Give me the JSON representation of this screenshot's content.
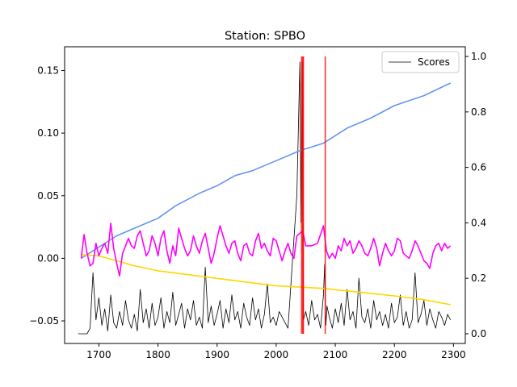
{
  "chart_data": {
    "type": "line",
    "title": "Station: SPBO",
    "xlabel": "",
    "ylabel": "",
    "y2label": "",
    "xlim": [
      1642,
      2320
    ],
    "ylim": [
      -0.068,
      0.169
    ],
    "y2lim": [
      -0.035,
      1.035
    ],
    "x_ticks": [
      1700,
      1800,
      1900,
      2000,
      2100,
      2200,
      2300
    ],
    "y_ticks": [
      -0.05,
      0.0,
      0.05,
      0.1,
      0.15
    ],
    "y_tick_labels": [
      "−0.05",
      "0.00",
      "0.05",
      "0.10",
      "0.15"
    ],
    "y2_ticks": [
      0.0,
      0.2,
      0.4,
      0.6,
      0.8,
      1.0
    ],
    "y2_tick_labels": [
      "0.0",
      "0.2",
      "0.4",
      "0.6",
      "0.8",
      "1.0"
    ],
    "legend": {
      "position": "upper right",
      "entries": [
        "Scores"
      ]
    },
    "grid": false,
    "series": [
      {
        "axis": "left",
        "color": "#6495ED",
        "x": [
          1670,
          1690,
          1710,
          1730,
          1760,
          1800,
          1830,
          1870,
          1900,
          1930,
          1960,
          2000,
          2040,
          2080,
          2120,
          2160,
          2200,
          2250,
          2295
        ],
        "y": [
          0.0,
          0.006,
          0.012,
          0.018,
          0.024,
          0.032,
          0.042,
          0.052,
          0.058,
          0.066,
          0.07,
          0.078,
          0.086,
          0.092,
          0.104,
          0.112,
          0.122,
          0.13,
          0.14
        ]
      },
      {
        "axis": "left",
        "color": "#FFD700",
        "x": [
          1670,
          1700,
          1730,
          1760,
          1800,
          1850,
          1900,
          1950,
          2000,
          2040,
          2080,
          2120,
          2160,
          2200,
          2250,
          2295
        ],
        "y": [
          0.003,
          0.002,
          -0.002,
          -0.006,
          -0.01,
          -0.013,
          -0.016,
          -0.019,
          -0.022,
          -0.023,
          -0.024,
          -0.026,
          -0.028,
          -0.03,
          -0.033,
          -0.037
        ]
      },
      {
        "axis": "left",
        "color": "#FF00FF",
        "x": [
          1670,
          1675,
          1680,
          1685,
          1690,
          1695,
          1700,
          1705,
          1710,
          1715,
          1720,
          1725,
          1730,
          1735,
          1740,
          1745,
          1750,
          1755,
          1760,
          1765,
          1770,
          1775,
          1780,
          1785,
          1790,
          1795,
          1800,
          1805,
          1810,
          1815,
          1820,
          1825,
          1830,
          1835,
          1840,
          1845,
          1850,
          1855,
          1860,
          1865,
          1870,
          1875,
          1880,
          1885,
          1890,
          1895,
          1900,
          1905,
          1910,
          1915,
          1920,
          1925,
          1930,
          1935,
          1940,
          1945,
          1950,
          1955,
          1960,
          1965,
          1970,
          1975,
          1980,
          1985,
          1990,
          1995,
          2000,
          2005,
          2010,
          2015,
          2020,
          2025,
          2030,
          2035,
          2040,
          2045,
          2050,
          2060,
          2070,
          2080,
          2085,
          2090,
          2095,
          2100,
          2105,
          2110,
          2115,
          2120,
          2125,
          2130,
          2135,
          2140,
          2145,
          2150,
          2155,
          2160,
          2165,
          2170,
          2175,
          2180,
          2185,
          2190,
          2195,
          2200,
          2205,
          2210,
          2215,
          2220,
          2225,
          2230,
          2235,
          2240,
          2245,
          2250,
          2255,
          2260,
          2265,
          2270,
          2275,
          2280,
          2285,
          2290,
          2295
        ],
        "y": [
          0.0,
          0.019,
          0.004,
          -0.006,
          -0.004,
          0.012,
          0.002,
          0.008,
          0.012,
          0.004,
          0.028,
          0.008,
          -0.004,
          -0.014,
          0.004,
          0.01,
          0.016,
          0.01,
          0.008,
          0.018,
          0.022,
          0.012,
          0.002,
          0.006,
          0.018,
          0.012,
          0.002,
          0.016,
          0.022,
          0.006,
          -0.004,
          0.01,
          0.002,
          0.024,
          0.016,
          0.008,
          0.002,
          0.006,
          0.018,
          0.01,
          0.004,
          0.014,
          0.02,
          0.008,
          -0.004,
          0.004,
          0.016,
          0.026,
          0.018,
          0.01,
          0.004,
          0.012,
          0.014,
          0.004,
          -0.002,
          0.01,
          0.012,
          0.004,
          0.002,
          0.014,
          0.02,
          0.008,
          0.012,
          0.006,
          0.002,
          0.016,
          0.014,
          0.006,
          -0.002,
          0.006,
          0.012,
          0.004,
          0.0,
          0.018,
          0.02,
          0.022,
          0.01,
          0.01,
          0.012,
          0.026,
          0.006,
          0.0,
          0.004,
          0.0,
          0.01,
          0.006,
          0.016,
          0.01,
          0.014,
          0.004,
          0.008,
          0.014,
          0.01,
          0.004,
          0.002,
          0.008,
          0.016,
          0.008,
          -0.006,
          0.004,
          0.012,
          0.006,
          0.002,
          0.006,
          0.016,
          0.014,
          0.004,
          0.002,
          0.0,
          0.006,
          0.014,
          0.01,
          0.004,
          -0.002,
          -0.004,
          -0.008,
          0.004,
          0.01,
          0.012,
          0.006,
          0.012,
          0.008,
          0.01
        ]
      },
      {
        "axis": "right",
        "name": "Scores",
        "color": "#000000",
        "x": [
          1665,
          1680,
          1685,
          1690,
          1695,
          1700,
          1705,
          1710,
          1715,
          1720,
          1725,
          1730,
          1735,
          1740,
          1745,
          1750,
          1755,
          1760,
          1765,
          1770,
          1775,
          1780,
          1785,
          1790,
          1795,
          1800,
          1805,
          1810,
          1815,
          1820,
          1825,
          1830,
          1835,
          1840,
          1845,
          1850,
          1855,
          1860,
          1865,
          1870,
          1875,
          1880,
          1885,
          1890,
          1895,
          1900,
          1905,
          1910,
          1915,
          1920,
          1925,
          1930,
          1935,
          1940,
          1945,
          1950,
          1955,
          1960,
          1965,
          1970,
          1975,
          1980,
          1985,
          1990,
          1995,
          2000,
          2005,
          2020,
          2035,
          2040,
          2042,
          2044,
          2046,
          2050,
          2055,
          2060,
          2065,
          2070,
          2075,
          2080,
          2082,
          2084,
          2086,
          2090,
          2095,
          2100,
          2105,
          2110,
          2115,
          2120,
          2125,
          2130,
          2135,
          2140,
          2145,
          2150,
          2155,
          2160,
          2165,
          2170,
          2175,
          2180,
          2185,
          2190,
          2195,
          2200,
          2205,
          2210,
          2215,
          2220,
          2225,
          2230,
          2235,
          2240,
          2245,
          2250,
          2255,
          2260,
          2265,
          2270,
          2275,
          2280,
          2285,
          2290,
          2295
        ],
        "y": [
          0.0,
          0.0,
          0.02,
          0.22,
          0.05,
          0.13,
          0.03,
          0.09,
          0.01,
          0.14,
          0.04,
          0.02,
          0.08,
          0.03,
          0.12,
          0.05,
          0.02,
          0.07,
          0.01,
          0.16,
          0.04,
          0.09,
          0.02,
          0.11,
          0.03,
          0.06,
          0.13,
          0.02,
          0.08,
          0.04,
          0.15,
          0.03,
          0.07,
          0.11,
          0.02,
          0.09,
          0.05,
          0.12,
          0.03,
          0.06,
          0.02,
          0.24,
          0.04,
          0.1,
          0.03,
          0.07,
          0.12,
          0.02,
          0.09,
          0.04,
          0.14,
          0.05,
          0.08,
          0.02,
          0.11,
          0.06,
          0.03,
          0.13,
          0.05,
          0.09,
          0.02,
          0.07,
          0.18,
          0.04,
          0.06,
          0.03,
          0.08,
          0.02,
          0.5,
          0.98,
          0.4,
          0.98,
          0.05,
          0.08,
          0.03,
          0.12,
          0.05,
          0.07,
          0.02,
          0.14,
          0.25,
          0.03,
          0.1,
          0.06,
          0.02,
          0.09,
          0.04,
          0.11,
          0.03,
          0.16,
          0.05,
          0.08,
          0.02,
          0.2,
          0.06,
          0.04,
          0.09,
          0.02,
          0.12,
          0.05,
          0.08,
          0.03,
          0.07,
          0.02,
          0.11,
          0.04,
          0.06,
          0.14,
          0.03,
          0.08,
          0.02,
          0.05,
          0.22,
          0.04,
          0.07,
          0.12,
          0.03,
          0.09,
          0.05,
          0.02,
          0.08,
          0.06,
          0.03,
          0.07,
          0.05
        ]
      }
    ],
    "vlines": [
      {
        "x": 2043,
        "color": "#FF0000"
      },
      {
        "x": 2045,
        "color": "#FF0000"
      },
      {
        "x": 2046,
        "color": "#FF0000"
      },
      {
        "x": 2083,
        "color": "#FF0000"
      }
    ]
  }
}
